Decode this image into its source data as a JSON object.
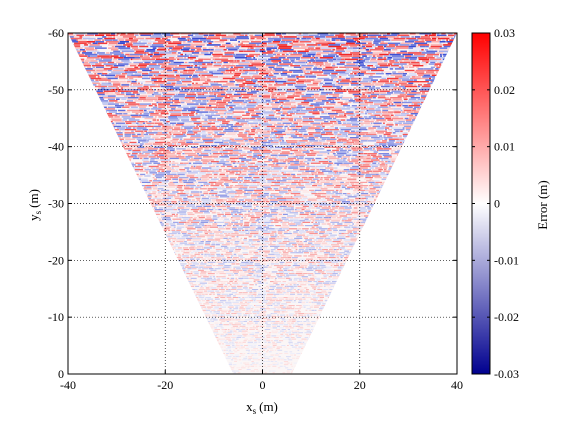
{
  "chart_data": {
    "type": "heatmap",
    "subtype": "scatter-colormap",
    "title": "",
    "xlabel": {
      "main": "x",
      "sub": "s",
      "unit": "(m)"
    },
    "ylabel": {
      "main": "y",
      "sub": "s",
      "unit": "(m)"
    },
    "xlim": [
      -40,
      40
    ],
    "ylim": [
      0,
      -60
    ],
    "y_axis_reversed": true,
    "xticks": [
      "-40",
      "-20",
      "0",
      "20",
      "40"
    ],
    "yticks": [
      "-60",
      "-50",
      "-40",
      "-30",
      "-20",
      "-10",
      "0"
    ],
    "grid": "dotted",
    "data_region": {
      "shape": "inverted triangle (sensor field of view)",
      "apex": [
        0,
        0
      ],
      "top_edge": {
        "y": -60,
        "x_range": [
          -40,
          40
        ]
      }
    },
    "colorbar": {
      "label": "Error (m)",
      "range": [
        -0.03,
        0.03
      ],
      "ticks": [
        "0.03",
        "0.02",
        "0.01",
        "0",
        "-0.01",
        "-0.02",
        "-0.03"
      ],
      "colormap": [
        "#00008f",
        "#ffffff",
        "#ff0000"
      ]
    },
    "pattern_description": "error magnitude grows with range; near apex values ~0, near y=-60 values span ±0.03 m"
  },
  "colors": {
    "negative": "#2a3fd0",
    "zero": "#ffffff",
    "positive": "#f01818",
    "grid": "#000000"
  }
}
